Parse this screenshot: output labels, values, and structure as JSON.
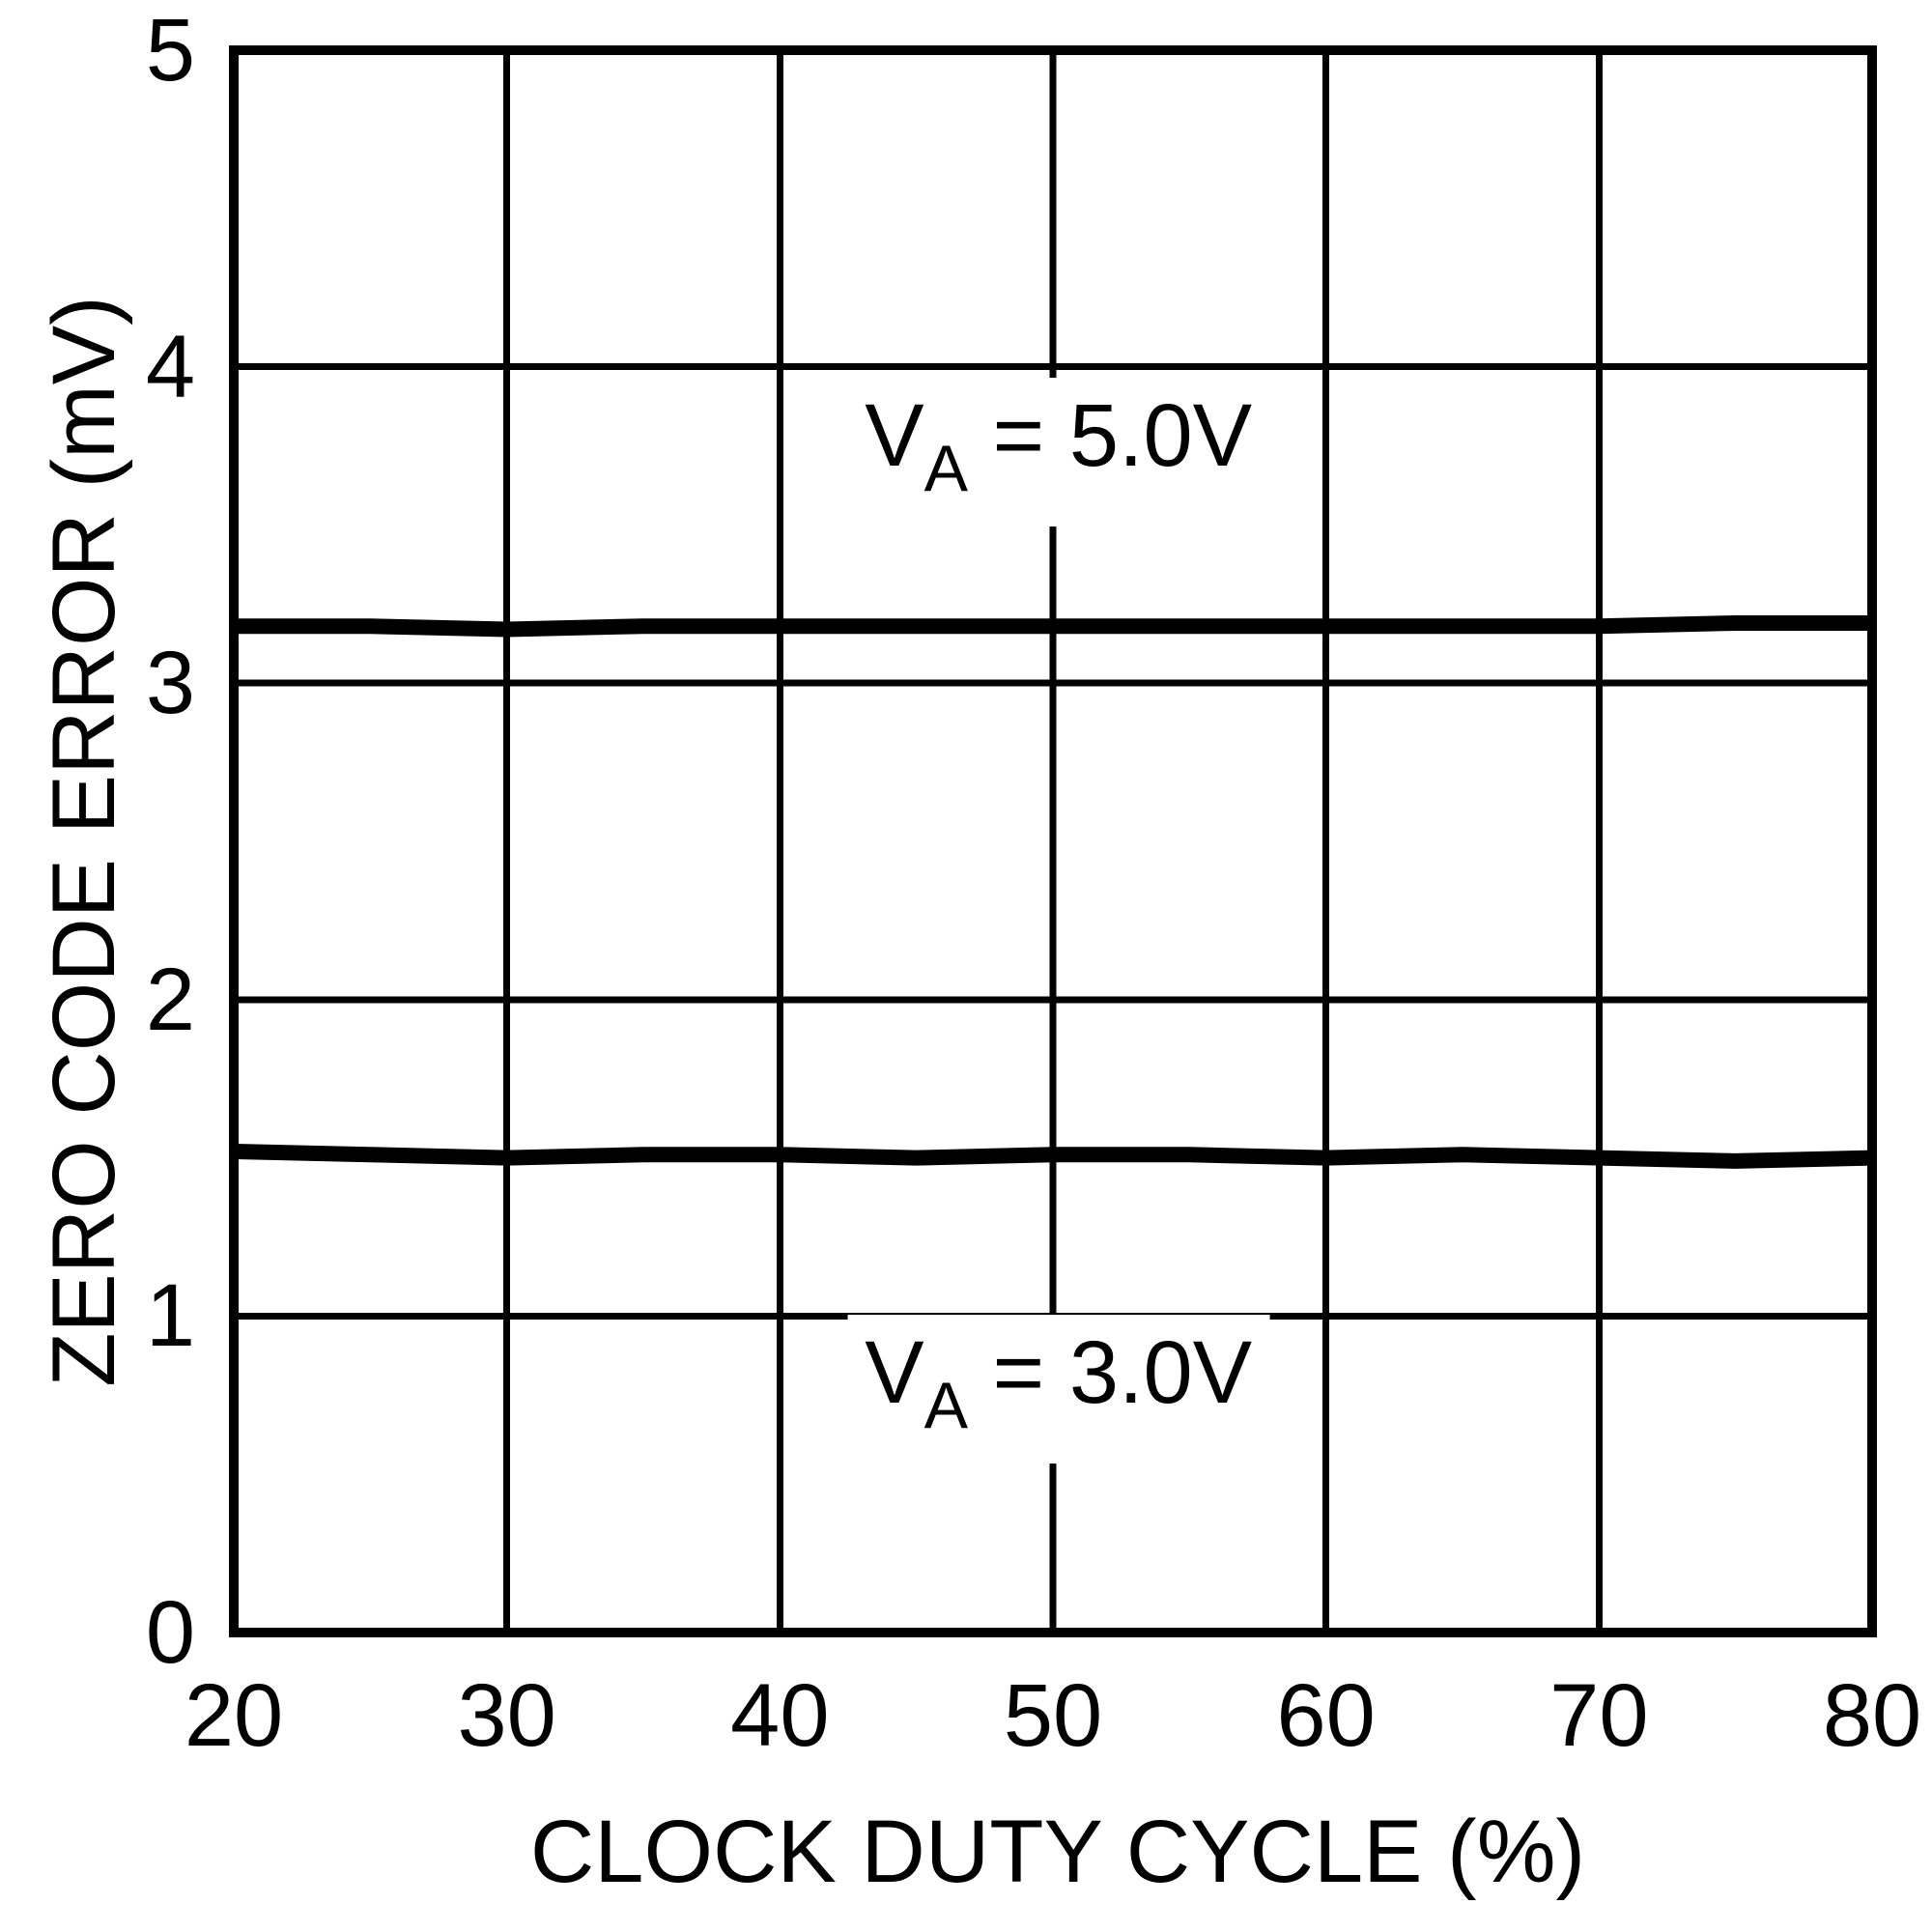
{
  "chart_data": {
    "type": "line",
    "title": "",
    "xlabel": "CLOCK DUTY CYCLE (%)",
    "ylabel": "ZERO CODE ERROR (mV)",
    "xlim": [
      20,
      80
    ],
    "ylim": [
      0,
      5
    ],
    "xticks": [
      20,
      30,
      40,
      50,
      60,
      70,
      80
    ],
    "yticks": [
      0,
      1,
      2,
      3,
      4,
      5
    ],
    "grid": true,
    "legend": "none",
    "background_color": "#ffffff",
    "foreground_color": "#000000",
    "series": [
      {
        "name": "VA = 5.0V",
        "x": [
          20,
          25,
          30,
          35,
          40,
          45,
          50,
          55,
          60,
          65,
          70,
          75,
          80
        ],
        "y": [
          3.18,
          3.18,
          3.17,
          3.18,
          3.18,
          3.18,
          3.18,
          3.18,
          3.18,
          3.18,
          3.18,
          3.19,
          3.19
        ]
      },
      {
        "name": "VA = 3.0V",
        "x": [
          20,
          25,
          30,
          35,
          40,
          45,
          50,
          55,
          60,
          65,
          70,
          75,
          80
        ],
        "y": [
          1.52,
          1.51,
          1.5,
          1.51,
          1.51,
          1.5,
          1.51,
          1.51,
          1.5,
          1.51,
          1.5,
          1.49,
          1.5
        ]
      }
    ],
    "annotations": [
      {
        "prefix": "V",
        "sub": "A",
        "suffix": " = 5.0V",
        "x": 50.2,
        "y": 3.73
      },
      {
        "prefix": "V",
        "sub": "A",
        "suffix": " = 3.0V",
        "x": 50.2,
        "y": 0.77
      }
    ]
  }
}
